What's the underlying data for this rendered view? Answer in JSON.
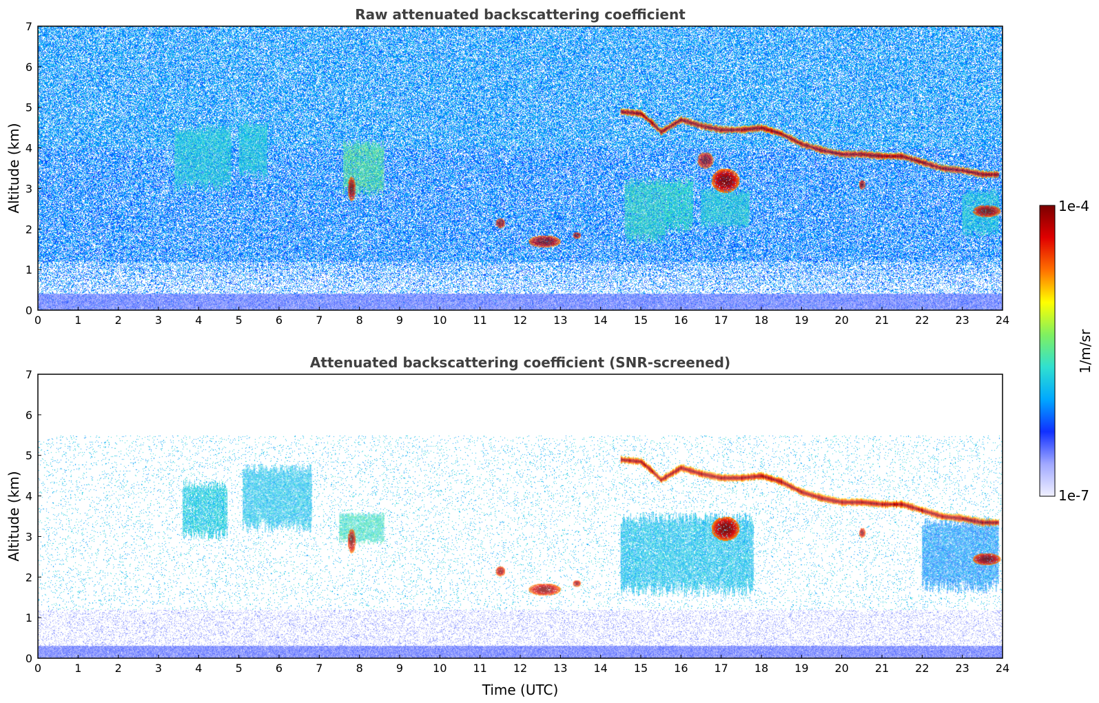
{
  "chart_data": [
    {
      "type": "heatmap",
      "title": "Raw attenuated backscattering coefficient",
      "xlabel": "",
      "ylabel": "Altitude (km)",
      "xlim": [
        0,
        24
      ],
      "ylim": [
        0,
        7
      ],
      "xticks": [
        "0",
        "1",
        "2",
        "3",
        "4",
        "5",
        "6",
        "7",
        "8",
        "9",
        "10",
        "11",
        "12",
        "13",
        "14",
        "15",
        "16",
        "17",
        "18",
        "19",
        "20",
        "21",
        "22",
        "23",
        "24"
      ],
      "yticks": [
        "0",
        "1",
        "2",
        "3",
        "4",
        "5",
        "6",
        "7"
      ],
      "background": "noisy",
      "features": [
        {
          "kind": "surface",
          "t0": 0,
          "t1": 24,
          "h0": 0,
          "h1": 0.4,
          "level": 0.1
        },
        {
          "kind": "fall",
          "t0": 3.4,
          "t1": 4.8,
          "h0": 2.9,
          "h1": 4.6,
          "level": 0.42
        },
        {
          "kind": "fall",
          "t0": 5.0,
          "t1": 5.7,
          "h0": 3.2,
          "h1": 4.7,
          "level": 0.42
        },
        {
          "kind": "fall",
          "t0": 7.6,
          "t1": 8.6,
          "h0": 2.8,
          "h1": 4.2,
          "level": 0.5
        },
        {
          "kind": "fall",
          "t0": 14.6,
          "t1": 15.6,
          "h0": 1.6,
          "h1": 3.3,
          "level": 0.45
        },
        {
          "kind": "fall",
          "t0": 15.6,
          "t1": 16.3,
          "h0": 1.9,
          "h1": 3.3,
          "level": 0.44
        },
        {
          "kind": "fall",
          "t0": 16.5,
          "t1": 17.7,
          "h0": 2.0,
          "h1": 3.0,
          "level": 0.43
        },
        {
          "kind": "fall",
          "t0": 23.0,
          "t1": 23.9,
          "h0": 1.8,
          "h1": 3.0,
          "level": 0.42
        },
        {
          "kind": "cirrus",
          "pts": [
            [
              14.5,
              4.9
            ],
            [
              15.0,
              4.85
            ],
            [
              15.3,
              4.6
            ],
            [
              15.5,
              4.4
            ],
            [
              16.0,
              4.7
            ],
            [
              16.5,
              4.55
            ],
            [
              17.0,
              4.45
            ],
            [
              17.5,
              4.45
            ],
            [
              18.0,
              4.5
            ],
            [
              18.5,
              4.35
            ],
            [
              19.0,
              4.1
            ],
            [
              19.5,
              3.95
            ],
            [
              20.0,
              3.85
            ],
            [
              20.5,
              3.85
            ],
            [
              21.0,
              3.8
            ],
            [
              21.5,
              3.8
            ],
            [
              22.0,
              3.65
            ],
            [
              22.5,
              3.5
            ],
            [
              23.0,
              3.45
            ],
            [
              23.5,
              3.35
            ],
            [
              23.9,
              3.35
            ]
          ]
        },
        {
          "kind": "blob",
          "t": 17.1,
          "h": 3.2,
          "w": 0.35,
          "d": 0.3
        },
        {
          "kind": "blob",
          "t": 16.6,
          "h": 3.7,
          "w": 0.2,
          "d": 0.2
        },
        {
          "kind": "blob",
          "t": 12.6,
          "h": 1.7,
          "w": 0.4,
          "d": 0.15
        },
        {
          "kind": "blob",
          "t": 11.5,
          "h": 2.15,
          "w": 0.12,
          "d": 0.12
        },
        {
          "kind": "blob",
          "t": 13.4,
          "h": 1.85,
          "w": 0.1,
          "d": 0.08
        },
        {
          "kind": "blob",
          "t": 20.5,
          "h": 3.1,
          "w": 0.08,
          "d": 0.12
        },
        {
          "kind": "blob",
          "t": 23.6,
          "h": 2.45,
          "w": 0.35,
          "d": 0.15
        },
        {
          "kind": "blob",
          "t": 7.8,
          "h": 3.0,
          "w": 0.1,
          "d": 0.3
        }
      ]
    },
    {
      "type": "heatmap",
      "title": "Attenuated backscattering coefficient (SNR-screened)",
      "xlabel": "Time (UTC)",
      "ylabel": "Altitude (km)",
      "xlim": [
        0,
        24
      ],
      "ylim": [
        0,
        7
      ],
      "xticks": [
        "0",
        "1",
        "2",
        "3",
        "4",
        "5",
        "6",
        "7",
        "8",
        "9",
        "10",
        "11",
        "12",
        "13",
        "14",
        "15",
        "16",
        "17",
        "18",
        "19",
        "20",
        "21",
        "22",
        "23",
        "24"
      ],
      "yticks": [
        "0",
        "1",
        "2",
        "3",
        "4",
        "5",
        "6",
        "7"
      ],
      "background": "screened",
      "features": [
        {
          "kind": "surface",
          "t0": 0,
          "t1": 24,
          "h0": 0,
          "h1": 0.3,
          "level": 0.1
        },
        {
          "kind": "fall",
          "t0": 3.6,
          "t1": 4.7,
          "h0": 2.9,
          "h1": 4.4,
          "level": 0.4
        },
        {
          "kind": "fall",
          "t0": 5.1,
          "t1": 6.8,
          "h0": 3.1,
          "h1": 4.8,
          "level": 0.38
        },
        {
          "kind": "fall",
          "t0": 7.5,
          "t1": 8.6,
          "h0": 2.8,
          "h1": 3.6,
          "level": 0.45
        },
        {
          "kind": "fall",
          "t0": 14.5,
          "t1": 17.8,
          "h0": 1.5,
          "h1": 3.6,
          "level": 0.38
        },
        {
          "kind": "fall",
          "t0": 22.0,
          "t1": 23.9,
          "h0": 1.6,
          "h1": 3.5,
          "level": 0.32
        },
        {
          "kind": "cirrus",
          "pts": [
            [
              14.5,
              4.9
            ],
            [
              15.0,
              4.85
            ],
            [
              15.3,
              4.6
            ],
            [
              15.5,
              4.4
            ],
            [
              16.0,
              4.7
            ],
            [
              16.5,
              4.55
            ],
            [
              17.0,
              4.45
            ],
            [
              17.5,
              4.45
            ],
            [
              18.0,
              4.5
            ],
            [
              18.5,
              4.35
            ],
            [
              19.0,
              4.1
            ],
            [
              19.5,
              3.95
            ],
            [
              20.0,
              3.85
            ],
            [
              20.5,
              3.85
            ],
            [
              21.0,
              3.8
            ],
            [
              21.5,
              3.8
            ],
            [
              22.0,
              3.65
            ],
            [
              22.5,
              3.5
            ],
            [
              23.0,
              3.45
            ],
            [
              23.5,
              3.35
            ],
            [
              23.9,
              3.35
            ]
          ]
        },
        {
          "kind": "blob",
          "t": 17.1,
          "h": 3.2,
          "w": 0.35,
          "d": 0.3
        },
        {
          "kind": "blob",
          "t": 12.6,
          "h": 1.7,
          "w": 0.4,
          "d": 0.15
        },
        {
          "kind": "blob",
          "t": 11.5,
          "h": 2.15,
          "w": 0.12,
          "d": 0.12
        },
        {
          "kind": "blob",
          "t": 13.4,
          "h": 1.85,
          "w": 0.1,
          "d": 0.08
        },
        {
          "kind": "blob",
          "t": 20.5,
          "h": 3.1,
          "w": 0.08,
          "d": 0.12
        },
        {
          "kind": "blob",
          "t": 23.6,
          "h": 2.45,
          "w": 0.35,
          "d": 0.15
        },
        {
          "kind": "blob",
          "t": 7.8,
          "h": 2.9,
          "w": 0.1,
          "d": 0.3
        }
      ]
    }
  ],
  "colorbar": {
    "label": "1/m/sr",
    "max_label": "1e-4",
    "min_label": "1e-7",
    "colors": [
      "#f0f0ff",
      "#a0a8ff",
      "#1030ff",
      "#00a8ff",
      "#30e0d0",
      "#80f060",
      "#ffff00",
      "#ff7000",
      "#e00000",
      "#7a0000"
    ]
  }
}
